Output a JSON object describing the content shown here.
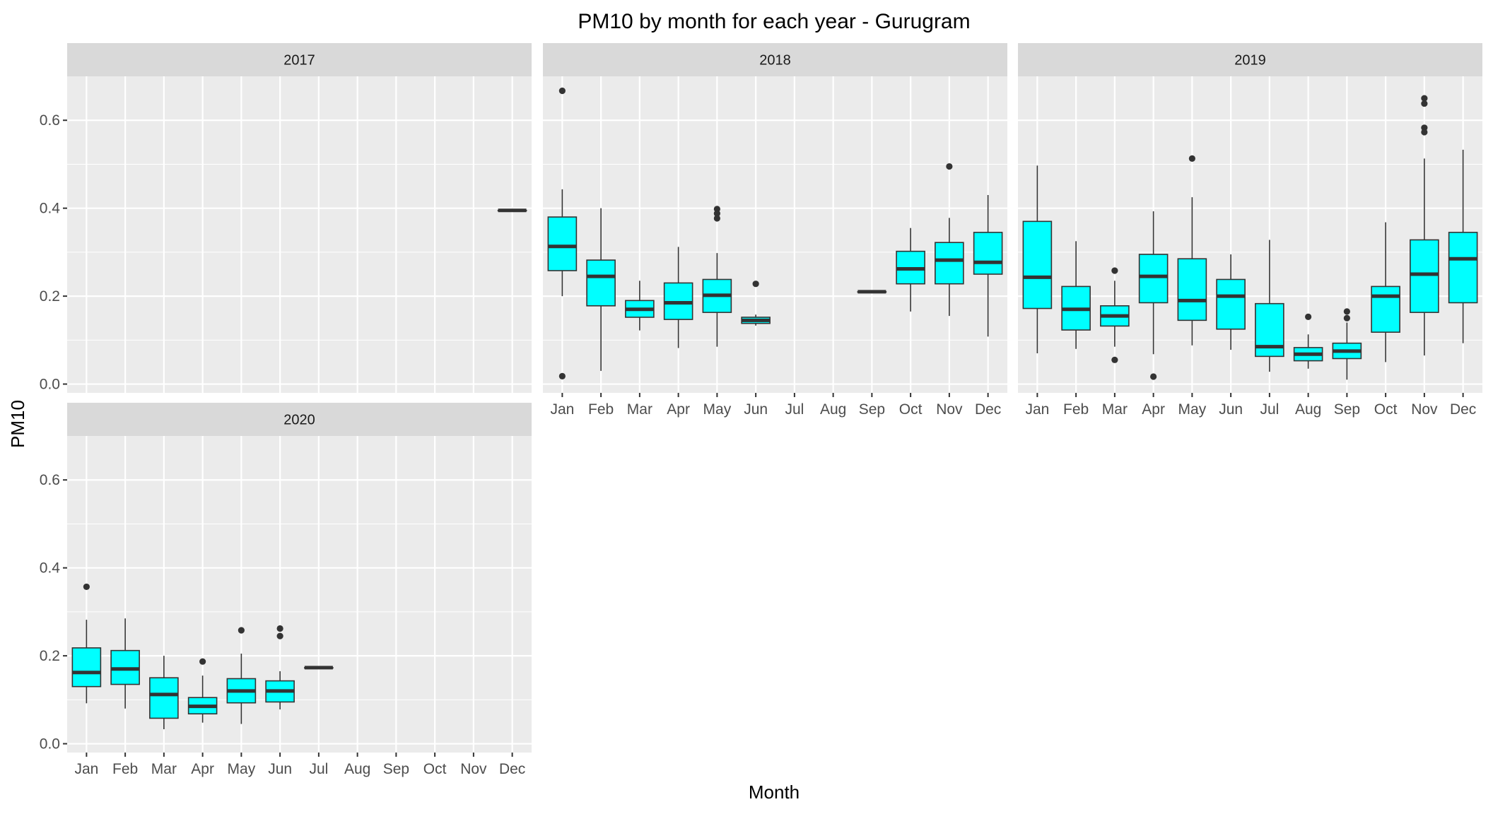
{
  "chart_data": {
    "type": "boxplot",
    "facet": "year",
    "title": "PM10 by month for each year - Gurugram",
    "xlabel": "Month",
    "ylabel": "PM10",
    "ylim": [
      -0.02,
      0.7
    ],
    "yticks": [
      0.0,
      0.2,
      0.4,
      0.6
    ],
    "ytick_labels": [
      "0.0",
      "0.2",
      "0.4",
      "0.6"
    ],
    "categories": [
      "Jan",
      "Feb",
      "Mar",
      "Apr",
      "May",
      "Jun",
      "Jul",
      "Aug",
      "Sep",
      "Oct",
      "Nov",
      "Dec"
    ],
    "grid": true,
    "box_color": "#00FFFF",
    "panel_bg": "#EBEBEB",
    "strip_bg": "#D9D9D9",
    "panels": [
      {
        "year": "2017",
        "boxes": [
          {
            "month": "Dec",
            "q1": 0.395,
            "median": 0.395,
            "q3": 0.395,
            "min": 0.395,
            "max": 0.395,
            "outliers": []
          }
        ]
      },
      {
        "year": "2018",
        "boxes": [
          {
            "month": "Jan",
            "q1": 0.258,
            "median": 0.313,
            "q3": 0.38,
            "min": 0.2,
            "max": 0.443,
            "outliers": [
              0.667,
              0.018
            ]
          },
          {
            "month": "Feb",
            "q1": 0.178,
            "median": 0.245,
            "q3": 0.282,
            "min": 0.03,
            "max": 0.4,
            "outliers": []
          },
          {
            "month": "Mar",
            "q1": 0.152,
            "median": 0.17,
            "q3": 0.19,
            "min": 0.122,
            "max": 0.235,
            "outliers": []
          },
          {
            "month": "Apr",
            "q1": 0.147,
            "median": 0.185,
            "q3": 0.23,
            "min": 0.082,
            "max": 0.312,
            "outliers": []
          },
          {
            "month": "May",
            "q1": 0.163,
            "median": 0.202,
            "q3": 0.238,
            "min": 0.085,
            "max": 0.298,
            "outliers": [
              0.398,
              0.388,
              0.377
            ]
          },
          {
            "month": "Jun",
            "q1": 0.138,
            "median": 0.145,
            "q3": 0.152,
            "min": 0.133,
            "max": 0.158,
            "outliers": [
              0.228
            ]
          },
          {
            "month": "Sep",
            "q1": 0.21,
            "median": 0.21,
            "q3": 0.21,
            "min": 0.21,
            "max": 0.21,
            "outliers": []
          },
          {
            "month": "Oct",
            "q1": 0.228,
            "median": 0.262,
            "q3": 0.302,
            "min": 0.165,
            "max": 0.355,
            "outliers": []
          },
          {
            "month": "Nov",
            "q1": 0.228,
            "median": 0.282,
            "q3": 0.322,
            "min": 0.155,
            "max": 0.378,
            "outliers": [
              0.495
            ]
          },
          {
            "month": "Dec",
            "q1": 0.25,
            "median": 0.277,
            "q3": 0.345,
            "min": 0.108,
            "max": 0.43,
            "outliers": []
          }
        ]
      },
      {
        "year": "2019",
        "boxes": [
          {
            "month": "Jan",
            "q1": 0.172,
            "median": 0.243,
            "q3": 0.37,
            "min": 0.07,
            "max": 0.497,
            "outliers": []
          },
          {
            "month": "Feb",
            "q1": 0.123,
            "median": 0.17,
            "q3": 0.222,
            "min": 0.08,
            "max": 0.325,
            "outliers": []
          },
          {
            "month": "Mar",
            "q1": 0.132,
            "median": 0.155,
            "q3": 0.178,
            "min": 0.085,
            "max": 0.235,
            "outliers": [
              0.258,
              0.055
            ]
          },
          {
            "month": "Apr",
            "q1": 0.185,
            "median": 0.245,
            "q3": 0.295,
            "min": 0.068,
            "max": 0.393,
            "outliers": [
              0.017
            ]
          },
          {
            "month": "May",
            "q1": 0.145,
            "median": 0.19,
            "q3": 0.285,
            "min": 0.088,
            "max": 0.425,
            "outliers": [
              0.513
            ]
          },
          {
            "month": "Jun",
            "q1": 0.125,
            "median": 0.2,
            "q3": 0.238,
            "min": 0.078,
            "max": 0.295,
            "outliers": []
          },
          {
            "month": "Jul",
            "q1": 0.063,
            "median": 0.085,
            "q3": 0.183,
            "min": 0.028,
            "max": 0.328,
            "outliers": []
          },
          {
            "month": "Aug",
            "q1": 0.053,
            "median": 0.068,
            "q3": 0.083,
            "min": 0.035,
            "max": 0.113,
            "outliers": [
              0.153
            ]
          },
          {
            "month": "Sep",
            "q1": 0.058,
            "median": 0.075,
            "q3": 0.093,
            "min": 0.01,
            "max": 0.14,
            "outliers": [
              0.165,
              0.15
            ]
          },
          {
            "month": "Oct",
            "q1": 0.118,
            "median": 0.2,
            "q3": 0.222,
            "min": 0.05,
            "max": 0.368,
            "outliers": []
          },
          {
            "month": "Nov",
            "q1": 0.163,
            "median": 0.25,
            "q3": 0.328,
            "min": 0.065,
            "max": 0.513,
            "outliers": [
              0.65,
              0.638,
              0.583,
              0.573
            ]
          },
          {
            "month": "Dec",
            "q1": 0.185,
            "median": 0.285,
            "q3": 0.345,
            "min": 0.093,
            "max": 0.533,
            "outliers": []
          }
        ]
      },
      {
        "year": "2020",
        "boxes": [
          {
            "month": "Jan",
            "q1": 0.13,
            "median": 0.162,
            "q3": 0.218,
            "min": 0.092,
            "max": 0.282,
            "outliers": [
              0.357
            ]
          },
          {
            "month": "Feb",
            "q1": 0.135,
            "median": 0.17,
            "q3": 0.212,
            "min": 0.08,
            "max": 0.285,
            "outliers": []
          },
          {
            "month": "Mar",
            "q1": 0.058,
            "median": 0.112,
            "q3": 0.15,
            "min": 0.033,
            "max": 0.2,
            "outliers": []
          },
          {
            "month": "Apr",
            "q1": 0.068,
            "median": 0.085,
            "q3": 0.105,
            "min": 0.048,
            "max": 0.155,
            "outliers": [
              0.187
            ]
          },
          {
            "month": "May",
            "q1": 0.093,
            "median": 0.12,
            "q3": 0.148,
            "min": 0.045,
            "max": 0.205,
            "outliers": [
              0.258
            ]
          },
          {
            "month": "Jun",
            "q1": 0.095,
            "median": 0.12,
            "q3": 0.143,
            "min": 0.078,
            "max": 0.165,
            "outliers": [
              0.262,
              0.245
            ]
          },
          {
            "month": "Jul",
            "q1": 0.173,
            "median": 0.173,
            "q3": 0.173,
            "min": 0.173,
            "max": 0.173,
            "outliers": []
          }
        ]
      }
    ]
  }
}
